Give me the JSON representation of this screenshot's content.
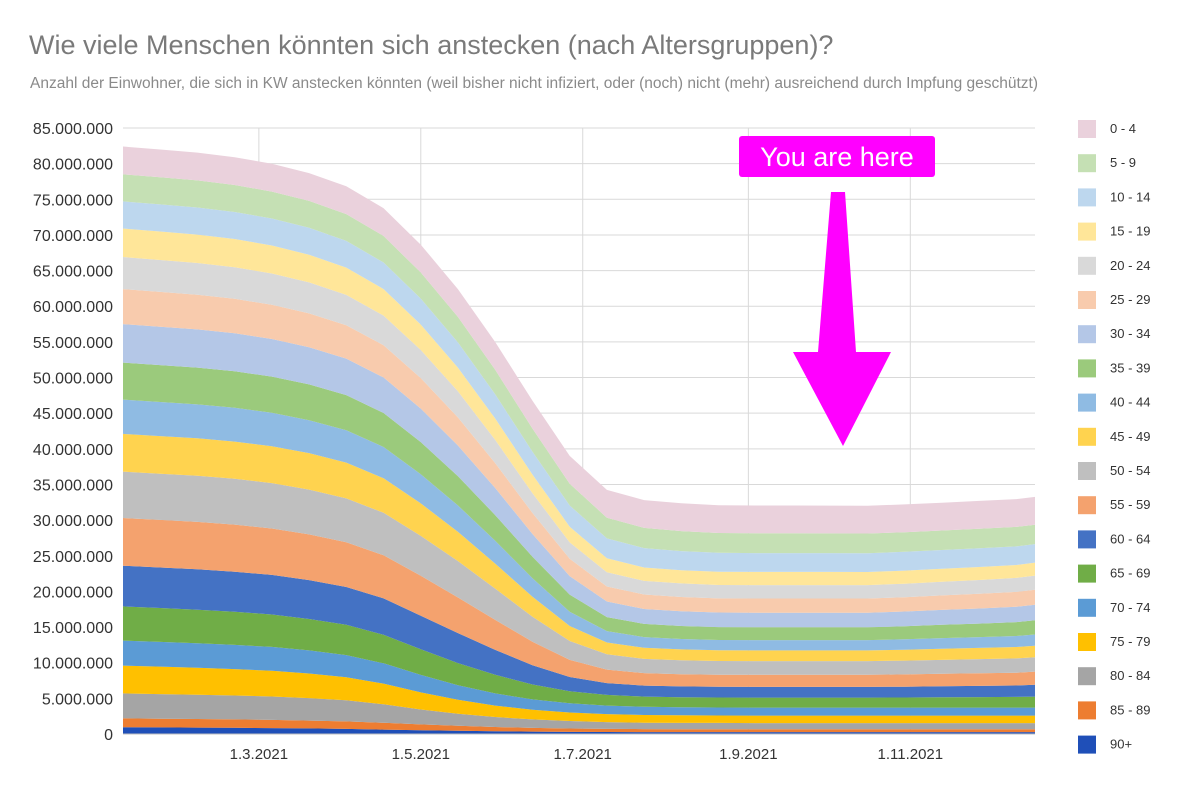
{
  "chart_data": {
    "type": "area",
    "stacked": true,
    "title": "Wie viele Menschen könnten sich anstecken (nach Altersgruppen)?",
    "subtitle": "Anzahl der Einwohner, die sich in KW anstecken könnten (weil bisher nicht infiziert, oder (noch) nicht (mehr) ausreichend durch Impfung geschützt)",
    "xlabel": "",
    "ylabel": "",
    "ylim": [
      0,
      85000000
    ],
    "y_ticks": [
      "0",
      "5.000.000",
      "10.000.000",
      "15.000.000",
      "20.000.000",
      "25.000.000",
      "30.000.000",
      "35.000.000",
      "40.000.000",
      "45.000.000",
      "50.000.000",
      "55.000.000",
      "60.000.000",
      "65.000.000",
      "70.000.000",
      "75.000.000",
      "80.000.000",
      "85.000.000"
    ],
    "x_ticks": [
      {
        "label": "1.3.2021",
        "week": 8.3
      },
      {
        "label": "1.5.2021",
        "week": 17
      },
      {
        "label": "1.7.2021",
        "week": 25.7
      },
      {
        "label": "1.9.2021",
        "week": 34.6
      },
      {
        "label": "1.11.2021",
        "week": 43.3
      }
    ],
    "x_weeks": [
      1,
      3,
      5,
      7,
      9,
      11,
      13,
      15,
      17,
      19,
      21,
      23,
      25,
      27,
      29,
      31,
      33,
      35,
      37,
      39,
      41,
      43,
      45,
      47,
      49,
      50
    ],
    "grid": true,
    "legend_position": "right",
    "series": [
      {
        "name": "90+",
        "color": "#1f4fb8",
        "values": [
          0.95,
          0.92,
          0.9,
          0.87,
          0.83,
          0.78,
          0.72,
          0.62,
          0.52,
          0.45,
          0.38,
          0.33,
          0.3,
          0.28,
          0.27,
          0.27,
          0.27,
          0.27,
          0.27,
          0.27,
          0.27,
          0.27,
          0.27,
          0.27,
          0.27,
          0.27
        ]
      },
      {
        "name": "85 - 89",
        "color": "#ed7d31",
        "values": [
          1.25,
          1.23,
          1.2,
          1.18,
          1.15,
          1.1,
          1.05,
          0.95,
          0.82,
          0.7,
          0.6,
          0.52,
          0.47,
          0.44,
          0.42,
          0.41,
          0.41,
          0.4,
          0.4,
          0.4,
          0.4,
          0.4,
          0.4,
          0.4,
          0.4,
          0.4
        ]
      },
      {
        "name": "80 - 84",
        "color": "#a5a5a5",
        "values": [
          3.5,
          3.45,
          3.4,
          3.35,
          3.28,
          3.15,
          2.95,
          2.6,
          2.1,
          1.7,
          1.4,
          1.2,
          1.05,
          0.95,
          0.9,
          0.88,
          0.87,
          0.86,
          0.86,
          0.86,
          0.86,
          0.86,
          0.86,
          0.86,
          0.86,
          0.86
        ]
      },
      {
        "name": "75 - 79",
        "color": "#ffc000",
        "values": [
          3.9,
          3.85,
          3.8,
          3.7,
          3.6,
          3.45,
          3.25,
          2.9,
          2.4,
          1.95,
          1.6,
          1.35,
          1.2,
          1.12,
          1.08,
          1.06,
          1.05,
          1.05,
          1.05,
          1.05,
          1.05,
          1.05,
          1.05,
          1.05,
          1.05,
          1.05
        ]
      },
      {
        "name": "70 - 74",
        "color": "#5b9bd5",
        "values": [
          3.5,
          3.47,
          3.44,
          3.4,
          3.35,
          3.25,
          3.1,
          2.85,
          2.45,
          2.05,
          1.72,
          1.45,
          1.28,
          1.2,
          1.15,
          1.13,
          1.12,
          1.12,
          1.12,
          1.12,
          1.12,
          1.12,
          1.12,
          1.12,
          1.12,
          1.12
        ]
      },
      {
        "name": "65 - 69",
        "color": "#70ad47",
        "values": [
          4.8,
          4.75,
          4.7,
          4.65,
          4.55,
          4.4,
          4.25,
          4.0,
          3.6,
          3.1,
          2.6,
          2.1,
          1.7,
          1.5,
          1.42,
          1.4,
          1.4,
          1.4,
          1.4,
          1.4,
          1.4,
          1.42,
          1.45,
          1.48,
          1.5,
          1.55
        ]
      },
      {
        "name": "60 - 64",
        "color": "#4472c4",
        "values": [
          5.7,
          5.68,
          5.66,
          5.62,
          5.55,
          5.45,
          5.3,
          5.1,
          4.7,
          4.2,
          3.5,
          2.7,
          2.0,
          1.65,
          1.55,
          1.52,
          1.5,
          1.5,
          1.5,
          1.5,
          1.5,
          1.52,
          1.55,
          1.57,
          1.6,
          1.65
        ]
      },
      {
        "name": "55 - 59",
        "color": "#f4a26e",
        "values": [
          6.7,
          6.68,
          6.65,
          6.6,
          6.52,
          6.42,
          6.28,
          6.05,
          5.6,
          5.0,
          4.2,
          3.3,
          2.4,
          1.9,
          1.75,
          1.72,
          1.7,
          1.7,
          1.7,
          1.7,
          1.7,
          1.72,
          1.75,
          1.78,
          1.8,
          1.85
        ]
      },
      {
        "name": "50 - 54",
        "color": "#bfbfbf",
        "values": [
          6.5,
          6.48,
          6.46,
          6.42,
          6.36,
          6.28,
          6.15,
          5.95,
          5.6,
          5.1,
          4.4,
          3.5,
          2.65,
          2.15,
          2.0,
          1.95,
          1.92,
          1.92,
          1.92,
          1.92,
          1.92,
          1.93,
          1.95,
          1.97,
          2.0,
          2.02
        ]
      },
      {
        "name": "45 - 49",
        "color": "#ffd34f",
        "values": [
          5.3,
          5.28,
          5.26,
          5.23,
          5.18,
          5.12,
          5.02,
          4.85,
          4.55,
          4.1,
          3.5,
          2.8,
          2.1,
          1.65,
          1.55,
          1.52,
          1.5,
          1.5,
          1.5,
          1.5,
          1.5,
          1.52,
          1.55,
          1.57,
          1.6,
          1.62
        ]
      },
      {
        "name": "40 - 44",
        "color": "#8fbbe3",
        "values": [
          4.8,
          4.78,
          4.76,
          4.73,
          4.68,
          4.62,
          4.53,
          4.38,
          4.1,
          3.7,
          3.2,
          2.6,
          2.0,
          1.6,
          1.5,
          1.47,
          1.45,
          1.45,
          1.45,
          1.45,
          1.45,
          1.47,
          1.5,
          1.52,
          1.55,
          1.57
        ]
      },
      {
        "name": "35 - 39",
        "color": "#9bca7c",
        "values": [
          5.2,
          5.18,
          5.16,
          5.13,
          5.08,
          5.02,
          4.93,
          4.78,
          4.5,
          4.1,
          3.6,
          3.0,
          2.4,
          1.95,
          1.85,
          1.82,
          1.8,
          1.8,
          1.8,
          1.8,
          1.8,
          1.83,
          1.86,
          1.9,
          1.95,
          2.0
        ]
      },
      {
        "name": "30 - 34",
        "color": "#b4c7e7",
        "values": [
          5.4,
          5.38,
          5.36,
          5.33,
          5.28,
          5.22,
          5.13,
          4.98,
          4.7,
          4.3,
          3.8,
          3.2,
          2.6,
          2.2,
          2.1,
          2.07,
          2.05,
          2.05,
          2.05,
          2.05,
          2.05,
          2.07,
          2.1,
          2.12,
          2.15,
          2.18
        ]
      },
      {
        "name": "25 - 29",
        "color": "#f8cbad",
        "values": [
          4.9,
          4.88,
          4.86,
          4.83,
          4.79,
          4.74,
          4.66,
          4.52,
          4.28,
          3.95,
          3.5,
          2.95,
          2.42,
          2.1,
          2.02,
          2.0,
          1.98,
          1.98,
          1.98,
          1.98,
          1.98,
          2.0,
          2.03,
          2.05,
          2.08,
          2.1
        ]
      },
      {
        "name": "20 - 24",
        "color": "#d9d9d9",
        "values": [
          4.5,
          4.48,
          4.46,
          4.43,
          4.39,
          4.34,
          4.27,
          4.15,
          3.94,
          3.65,
          3.25,
          2.78,
          2.3,
          2.0,
          1.92,
          1.9,
          1.88,
          1.88,
          1.88,
          1.88,
          1.88,
          1.9,
          1.92,
          1.94,
          1.96,
          1.98
        ]
      },
      {
        "name": "15 - 19",
        "color": "#ffe699",
        "values": [
          4.0,
          3.99,
          3.98,
          3.96,
          3.93,
          3.89,
          3.83,
          3.73,
          3.56,
          3.32,
          3.0,
          2.6,
          2.2,
          1.95,
          1.88,
          1.86,
          1.85,
          1.85,
          1.85,
          1.85,
          1.84,
          1.84,
          1.83,
          1.83,
          1.82,
          1.82
        ]
      },
      {
        "name": "10 - 14",
        "color": "#bdd7ee",
        "values": [
          3.8,
          3.8,
          3.8,
          3.79,
          3.78,
          3.77,
          3.75,
          3.72,
          3.65,
          3.55,
          3.4,
          3.2,
          2.98,
          2.8,
          2.72,
          2.68,
          2.66,
          2.65,
          2.65,
          2.64,
          2.64,
          2.63,
          2.62,
          2.62,
          2.61,
          2.6
        ]
      },
      {
        "name": "5 - 9",
        "color": "#c5e0b4",
        "values": [
          3.8,
          3.8,
          3.8,
          3.79,
          3.78,
          3.77,
          3.75,
          3.72,
          3.66,
          3.57,
          3.44,
          3.26,
          3.06,
          2.9,
          2.83,
          2.8,
          2.78,
          2.77,
          2.77,
          2.76,
          2.76,
          2.75,
          2.74,
          2.74,
          2.73,
          2.72
        ]
      },
      {
        "name": "0 - 4",
        "color": "#ead1dc",
        "values": [
          3.9,
          3.9,
          3.9,
          3.9,
          3.9,
          3.9,
          3.9,
          3.9,
          3.9,
          3.9,
          3.9,
          3.9,
          3.9,
          3.9,
          3.9,
          3.9,
          3.9,
          3.9,
          3.9,
          3.9,
          3.9,
          3.9,
          3.9,
          3.9,
          3.9,
          3.9
        ]
      }
    ],
    "value_unit_multiplier": 1000000,
    "annotations": [
      {
        "text": "You are here",
        "bg_color": "#ff00ff",
        "text_color": "#ffffff",
        "points_to_week": 41,
        "arrow_color": "#ff00ff"
      }
    ]
  }
}
